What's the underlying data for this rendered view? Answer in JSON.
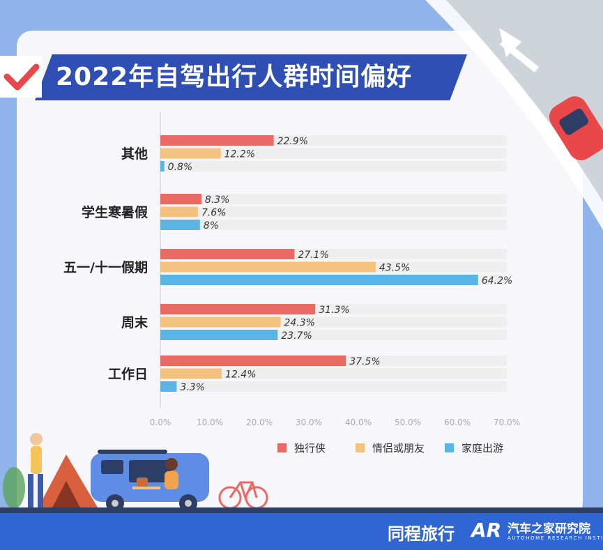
{
  "title": "2022年自驾出行人群时间偏好",
  "brands": {
    "tongcheng": "同程旅行",
    "autohome_mark": "AR",
    "autohome": "汽车之家研究院",
    "autohome_sub": "AUTOHOME RESEARCH INSTITUTE"
  },
  "colors": {
    "solo": "#e96a62",
    "couple": "#f3c27f",
    "family": "#5ab5e6",
    "banner": "#2f4fb4",
    "footer": "#2f66d3",
    "track": "#eeeeee"
  },
  "chart_data": {
    "type": "bar",
    "orientation": "horizontal",
    "categories": [
      "其他",
      "学生寒暑假",
      "五一/十一假期",
      "周末",
      "工作日"
    ],
    "series": [
      {
        "name": "独行侠",
        "values": [
          22.9,
          8.3,
          27.1,
          31.3,
          37.5
        ],
        "labels": [
          "22.9%",
          "8.3%",
          "27.1%",
          "31.3%",
          "37.5%"
        ]
      },
      {
        "name": "情侣或朋友",
        "values": [
          12.2,
          7.6,
          43.5,
          24.3,
          12.4
        ],
        "labels": [
          "12.2%",
          "7.6%",
          "43.5%",
          "24.3%",
          "12.4%"
        ]
      },
      {
        "name": "家庭出游",
        "values": [
          0.8,
          8,
          64.2,
          23.7,
          3.3
        ],
        "labels": [
          "0.8%",
          "8%",
          "64.2%",
          "23.7%",
          "3.3%"
        ]
      }
    ],
    "xlim": [
      0,
      70
    ],
    "x_ticks": [
      "0.0%",
      "10.0%",
      "20.0%",
      "30.0%",
      "40.0%",
      "50.0%",
      "60.0%",
      "70.0%"
    ],
    "legend_position": "bottom-right",
    "grid": false
  }
}
